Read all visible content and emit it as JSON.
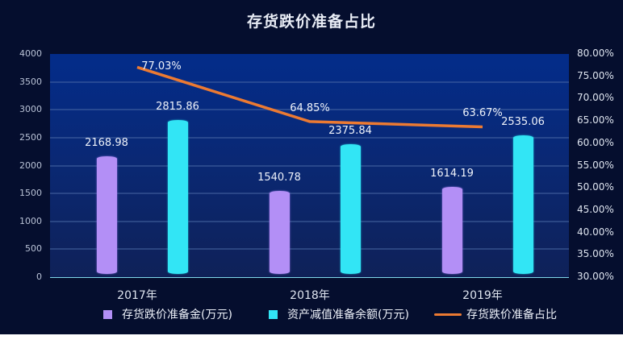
{
  "title": "存货跌价准备占比",
  "colors": {
    "background": "#050e2e",
    "series_reserve": "#b38ff6",
    "series_impairment": "#32e5f5",
    "series_ratio": "#ec7a32"
  },
  "chart_data": {
    "type": "bar",
    "title": "存货跌价准备占比",
    "categories": [
      "2017年",
      "2018年",
      "2019年"
    ],
    "series": [
      {
        "name": "存货跌价准备金(万元)",
        "type": "bar",
        "axis": "left",
        "values": [
          2168.98,
          1540.78,
          1614.19
        ],
        "labels": [
          "2168.98",
          "1540.78",
          "1614.19"
        ]
      },
      {
        "name": "资产减值准备余额(万元)",
        "type": "bar",
        "axis": "left",
        "values": [
          2815.86,
          2375.84,
          2535.06
        ],
        "labels": [
          "2815.86",
          "2375.84",
          "2535.06"
        ]
      },
      {
        "name": "存货跌价准备占比",
        "type": "line",
        "axis": "right",
        "values": [
          77.03,
          64.85,
          63.67
        ],
        "labels": [
          "77.03%",
          "64.85%",
          "63.67%"
        ]
      }
    ],
    "y_left": {
      "ylim": [
        0,
        4000
      ],
      "ticks": [
        "0",
        "500",
        "1000",
        "1500",
        "2000",
        "2500",
        "3000",
        "3500",
        "4000"
      ]
    },
    "y_right": {
      "ylim": [
        30,
        80
      ],
      "ticks": [
        "30.00%",
        "35.00%",
        "40.00%",
        "45.00%",
        "50.00%",
        "55.00%",
        "60.00%",
        "65.00%",
        "70.00%",
        "75.00%",
        "80.00%"
      ]
    },
    "xlabel": "",
    "ylabel": "",
    "grid": true,
    "legend_position": "bottom"
  },
  "legend": [
    {
      "label": "存货跌价准备金(万元)",
      "marker": "square"
    },
    {
      "label": "资产减值准备余额(万元)",
      "marker": "square"
    },
    {
      "label": "存货跌价准备占比",
      "marker": "line"
    }
  ]
}
